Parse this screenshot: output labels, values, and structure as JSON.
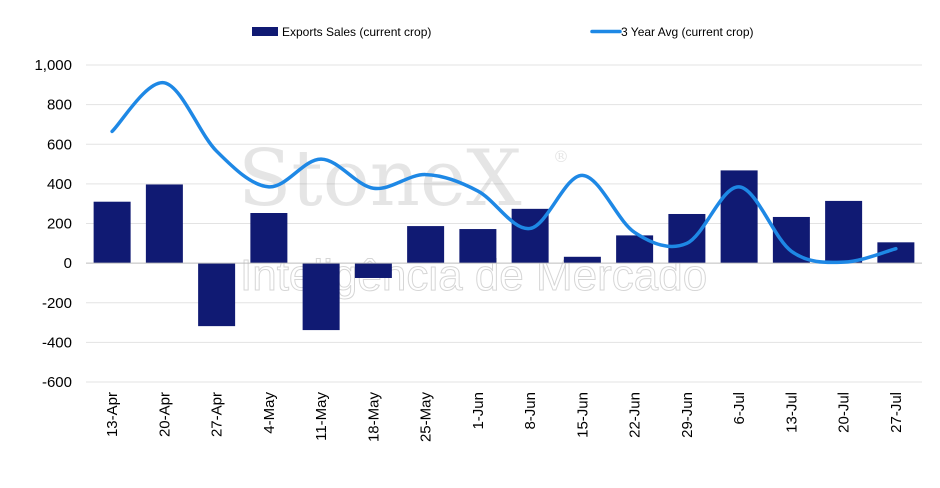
{
  "chart_data": {
    "type": "bar",
    "categories": [
      "13-Apr",
      "20-Apr",
      "27-Apr",
      "4-May",
      "11-May",
      "18-May",
      "25-May",
      "1-Jun",
      "8-Jun",
      "15-Jun",
      "22-Jun",
      "29-Jun",
      "6-Jul",
      "13-Jul",
      "20-Jul",
      "27-Jul"
    ],
    "series": [
      {
        "name": "Exports Sales (current crop)",
        "type": "bar",
        "color": "#101a73",
        "values": [
          310,
          397,
          -318,
          253,
          -338,
          -75,
          187,
          172,
          274,
          32,
          140,
          248,
          468,
          233,
          314,
          105
        ]
      },
      {
        "name": "3 Year Avg (current crop)",
        "type": "line",
        "color": "#1e88e5",
        "values": [
          665,
          910,
          565,
          385,
          525,
          378,
          447,
          364,
          175,
          443,
          155,
          100,
          385,
          60,
          5,
          73
        ]
      }
    ],
    "ylim": [
      -600,
      1000
    ],
    "yticks": [
      "1,000",
      "800",
      "600",
      "400",
      "200",
      "0",
      "-200",
      "-400",
      "-600"
    ],
    "ytick_values": [
      1000,
      800,
      600,
      400,
      200,
      0,
      -200,
      -400,
      -600
    ],
    "grid": true,
    "legend_position": "top"
  },
  "watermark": {
    "brand": "StoneX",
    "registered_mark": "®",
    "tagline": "Inteligência de Mercado"
  }
}
